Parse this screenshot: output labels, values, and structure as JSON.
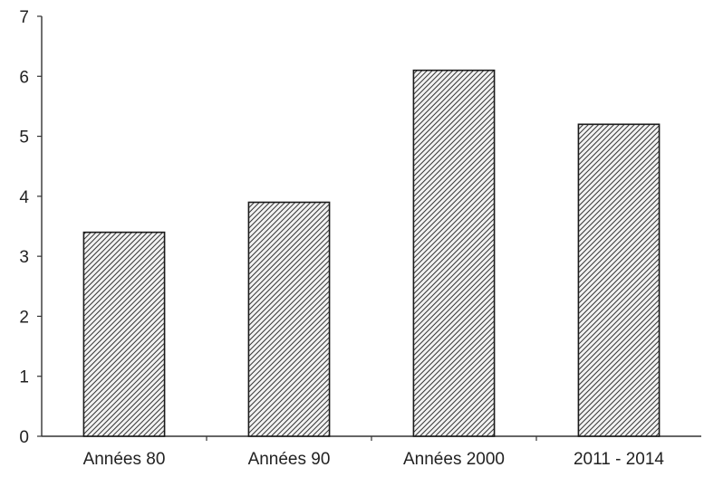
{
  "chart_data": {
    "type": "bar",
    "title": "",
    "xlabel": "",
    "ylabel": "",
    "categories": [
      "Années 80",
      "Années 90",
      "Années 2000",
      "2011 - 2014"
    ],
    "values": [
      3.4,
      3.9,
      6.1,
      5.2
    ],
    "ylim": [
      0,
      7
    ],
    "yticks": [
      "0",
      "1",
      "2",
      "3",
      "4",
      "5",
      "6",
      "7"
    ],
    "grid": false,
    "bar_fill": "hatched",
    "colors": {
      "bar_stroke": "#1a1a1a",
      "hatch": "#333333"
    }
  }
}
